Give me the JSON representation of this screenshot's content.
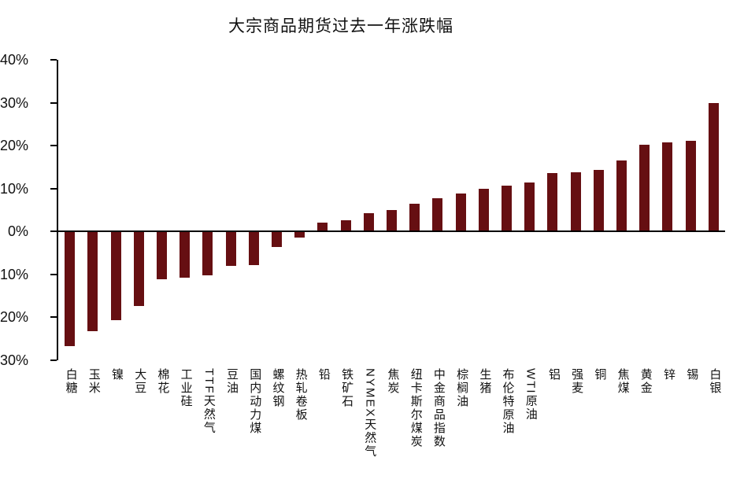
{
  "chart_data": {
    "type": "bar",
    "title": "大宗商品期货过去一年涨跌幅",
    "xlabel": "",
    "ylabel": "",
    "unit": "%",
    "ylim": [
      -30,
      40
    ],
    "grid": false,
    "legend": "none",
    "yticks": [
      40,
      30,
      20,
      10,
      0,
      -10,
      -20,
      -30
    ],
    "ytick_labels": [
      "40%",
      "30%",
      "20%",
      "10%",
      "0%",
      "-10%",
      "-20%",
      "-30%"
    ],
    "categories": [
      "白糖",
      "玉米",
      "镍",
      "大豆",
      "棉花",
      "工业硅",
      "TTF天然气",
      "豆油",
      "国内动力煤",
      "螺纹钢",
      "热轧卷板",
      "铅",
      "铁矿石",
      "NYMEX天然气",
      "焦炭",
      "纽卡斯尔煤炭",
      "中金商品指数",
      "棕榈油",
      "生猪",
      "布伦特原油",
      "WTI原油",
      "铝",
      "强麦",
      "铜",
      "焦煤",
      "黄金",
      "锌",
      "锡",
      "白银"
    ],
    "values": [
      -26.6,
      -23.0,
      -20.4,
      -17.1,
      -11.0,
      -10.6,
      -10.1,
      -7.9,
      -7.7,
      -3.4,
      -1.3,
      2.0,
      2.7,
      4.2,
      5.0,
      6.5,
      7.8,
      8.9,
      10.0,
      10.7,
      11.5,
      13.6,
      13.8,
      14.3,
      16.5,
      20.2,
      20.8,
      21.2,
      30.0
    ]
  },
  "colors": {
    "bar": "#660F12",
    "axis": "#000000",
    "text": "#111111",
    "background": "#FFFFFF"
  }
}
